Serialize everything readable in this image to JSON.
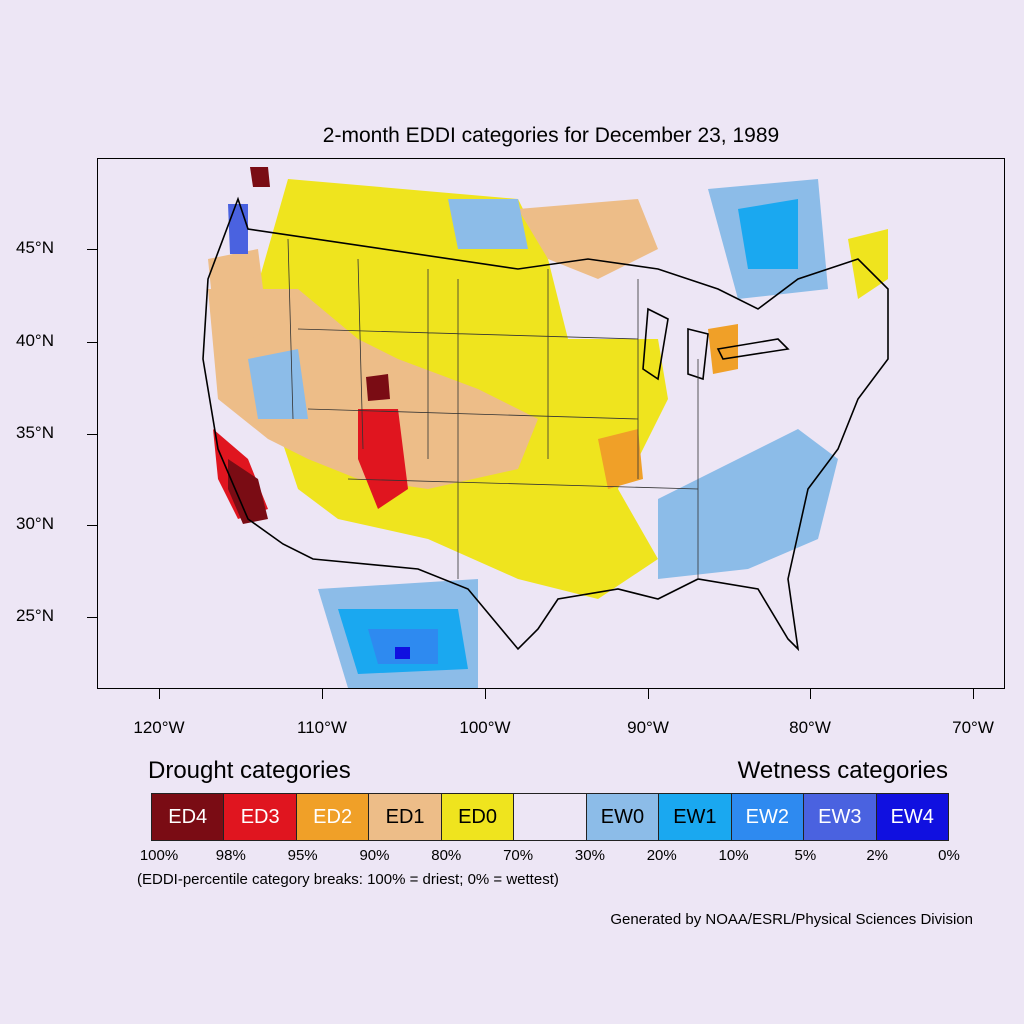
{
  "title": "2-month EDDI categories for December 23, 1989",
  "latitude_labels": [
    "45°N",
    "40°N",
    "35°N",
    "30°N",
    "25°N"
  ],
  "longitude_labels": [
    "120°W",
    "110°W",
    "100°W",
    "90°W",
    "80°W",
    "70°W"
  ],
  "legend": {
    "drought_heading": "Drought categories",
    "wetness_heading": "Wetness categories",
    "categories": [
      {
        "label": "ED4",
        "color": "#7a0c14",
        "text_color": "#ffffff"
      },
      {
        "label": "ED3",
        "color": "#e0151f",
        "text_color": "#ffffff"
      },
      {
        "label": "ED2",
        "color": "#f0a028",
        "text_color": "#ffffff"
      },
      {
        "label": "ED1",
        "color": "#edbd88",
        "text_color": "#000000"
      },
      {
        "label": "ED0",
        "color": "#efe41e",
        "text_color": "#000000"
      },
      {
        "label": "",
        "color": "#ede6f5",
        "text_color": "#000000"
      },
      {
        "label": "EW0",
        "color": "#8cbce8",
        "text_color": "#000000"
      },
      {
        "label": "EW1",
        "color": "#1aa8f0",
        "text_color": "#000000"
      },
      {
        "label": "EW2",
        "color": "#2e8af0",
        "text_color": "#ffffff"
      },
      {
        "label": "EW3",
        "color": "#4a62e0",
        "text_color": "#ffffff"
      },
      {
        "label": "EW4",
        "color": "#1010e0",
        "text_color": "#ffffff"
      }
    ],
    "percentile_breaks": [
      "100%",
      "98%",
      "95%",
      "90%",
      "80%",
      "70%",
      "30%",
      "20%",
      "10%",
      "5%",
      "2%",
      "0%"
    ]
  },
  "note": "(EDDI-percentile category breaks: 100% = driest; 0% = wettest)",
  "credit": "Generated by NOAA/ESRL/Physical Sciences Division"
}
